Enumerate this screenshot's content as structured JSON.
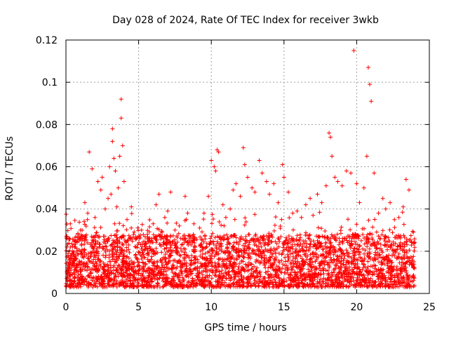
{
  "chart_data": {
    "type": "scatter",
    "title": "Day 028 of 2024, Rate Of TEC Index for receiver 3wkb",
    "xlabel": "GPS time / hours",
    "ylabel": "ROTI / TECUs",
    "xlim": [
      0,
      25
    ],
    "ylim": [
      0,
      0.12
    ],
    "xticks": [
      0,
      5,
      10,
      15,
      20,
      25
    ],
    "xtick_labels": [
      "0",
      "5",
      "10",
      "15",
      "20",
      "25"
    ],
    "yticks": [
      0,
      0.02,
      0.04,
      0.06,
      0.08,
      0.1,
      0.12
    ],
    "ytick_labels": [
      "0",
      "0.02",
      "0.04",
      "0.06",
      "0.08",
      "0.1",
      "0.12"
    ],
    "grid": true,
    "marker": "plus",
    "color": "#ff0000",
    "series": [
      {
        "name": "ROTI",
        "x": [
          0.1,
          0.3,
          0.6,
          1.0,
          1.3,
          1.5,
          1.6,
          1.8,
          2.0,
          2.2,
          2.4,
          2.5,
          2.7,
          2.9,
          3.0,
          3.1,
          3.2,
          3.2,
          3.3,
          3.4,
          3.5,
          3.6,
          3.7,
          3.8,
          3.8,
          3.9,
          4.0,
          4.2,
          4.5,
          4.8,
          5.2,
          5.6,
          6.0,
          6.2,
          6.4,
          6.8,
          7.0,
          7.2,
          7.5,
          7.8,
          8.2,
          8.5,
          8.8,
          9.2,
          9.5,
          9.8,
          10.0,
          10.2,
          10.3,
          10.4,
          10.5,
          10.8,
          11.0,
          11.3,
          11.5,
          11.7,
          12.0,
          12.2,
          12.3,
          12.5,
          12.8,
          13.0,
          13.3,
          13.5,
          13.8,
          14.0,
          14.3,
          14.6,
          14.9,
          15.0,
          15.3,
          15.6,
          15.9,
          16.2,
          16.5,
          16.8,
          17.0,
          17.3,
          17.6,
          17.9,
          18.1,
          18.2,
          18.3,
          18.5,
          18.7,
          19.0,
          19.3,
          19.6,
          19.8,
          20.0,
          20.2,
          20.5,
          20.7,
          20.8,
          20.9,
          21.0,
          21.2,
          21.5,
          21.8,
          22.0,
          22.3,
          22.6,
          22.9,
          23.2,
          23.4,
          23.6,
          23.9
        ],
        "y": [
          0.026,
          0.033,
          0.022,
          0.03,
          0.043,
          0.038,
          0.067,
          0.059,
          0.036,
          0.053,
          0.049,
          0.055,
          0.04,
          0.045,
          0.06,
          0.047,
          0.078,
          0.072,
          0.064,
          0.058,
          0.041,
          0.05,
          0.065,
          0.092,
          0.083,
          0.07,
          0.053,
          0.035,
          0.041,
          0.026,
          0.03,
          0.028,
          0.033,
          0.042,
          0.047,
          0.036,
          0.039,
          0.048,
          0.03,
          0.032,
          0.046,
          0.027,
          0.033,
          0.031,
          0.038,
          0.046,
          0.063,
          0.06,
          0.058,
          0.068,
          0.067,
          0.042,
          0.036,
          0.04,
          0.049,
          0.052,
          0.046,
          0.069,
          0.061,
          0.055,
          0.05,
          0.048,
          0.063,
          0.057,
          0.053,
          0.047,
          0.052,
          0.043,
          0.061,
          0.055,
          0.048,
          0.038,
          0.039,
          0.036,
          0.042,
          0.045,
          0.037,
          0.047,
          0.043,
          0.051,
          0.076,
          0.074,
          0.065,
          0.055,
          0.053,
          0.051,
          0.058,
          0.057,
          0.115,
          0.052,
          0.043,
          0.05,
          0.065,
          0.107,
          0.099,
          0.091,
          0.057,
          0.038,
          0.045,
          0.04,
          0.043,
          0.035,
          0.036,
          0.041,
          0.054,
          0.049,
          0.029
        ]
      }
    ],
    "dense_band": {
      "x_range": [
        0,
        24
      ],
      "baseline_y": [
        0.003,
        0.028
      ],
      "note_values": []
    }
  }
}
